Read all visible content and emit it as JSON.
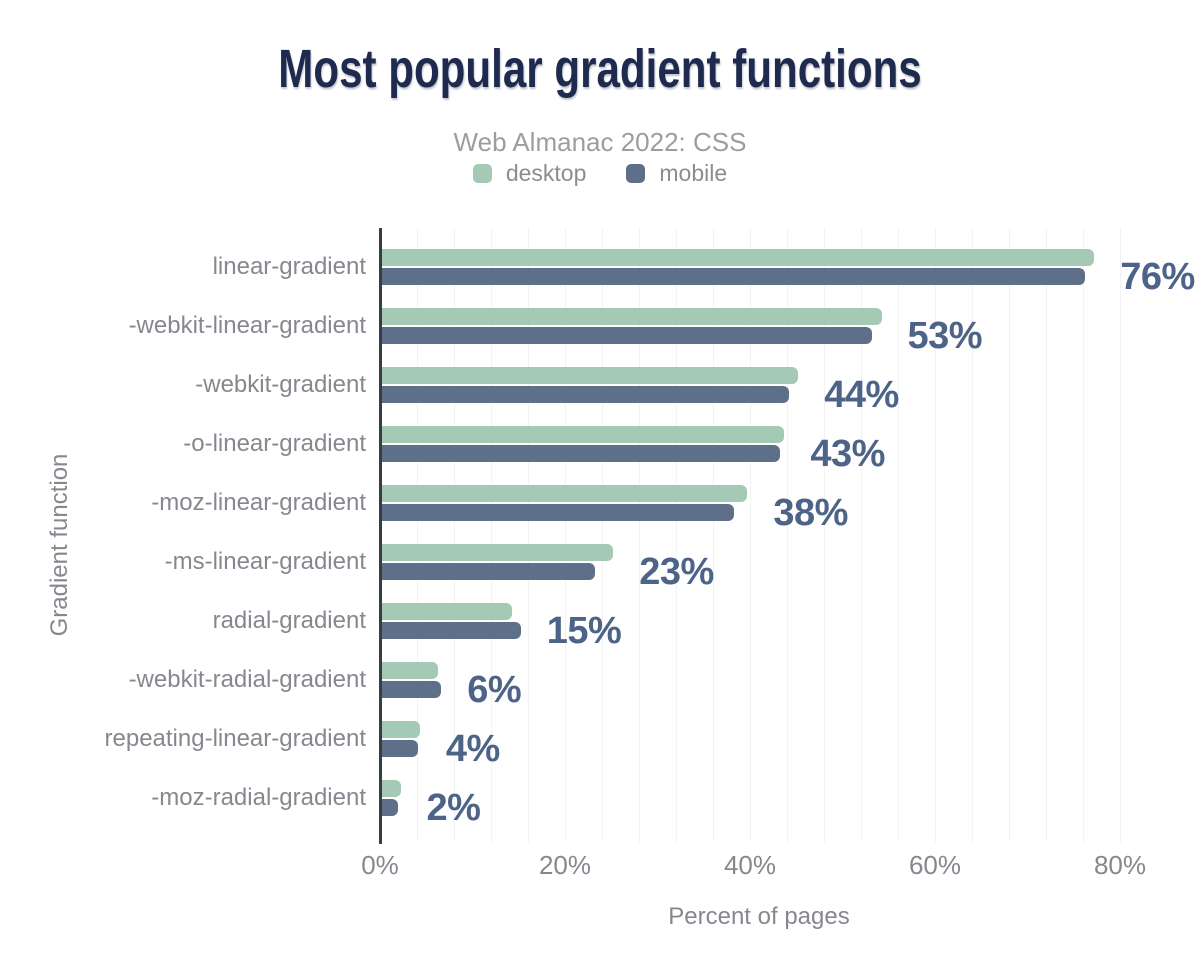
{
  "chart_data": {
    "type": "bar",
    "orientation": "horizontal",
    "title": "Most popular gradient functions",
    "subtitle": "Web Almanac 2022: CSS",
    "xlabel": "Percent of pages",
    "ylabel": "Gradient function",
    "xlim": [
      0,
      80
    ],
    "x_ticks": [
      "0%",
      "20%",
      "40%",
      "60%",
      "80%"
    ],
    "grid_step_pct": 4,
    "grid": "minor-vertical",
    "legend_position": "top-center",
    "categories": [
      "linear-gradient",
      "-webkit-linear-gradient",
      "-webkit-gradient",
      "-o-linear-gradient",
      "-moz-linear-gradient",
      "-ms-linear-gradient",
      "radial-gradient",
      "-webkit-radial-gradient",
      "repeating-linear-gradient",
      "-moz-radial-gradient"
    ],
    "series": [
      {
        "name": "desktop",
        "color": "#a4c9b4",
        "values": [
          77,
          54,
          45,
          43.5,
          39.5,
          25,
          14,
          6,
          4.1,
          2
        ]
      },
      {
        "name": "mobile",
        "color": "#5e7089",
        "values": [
          76,
          53,
          44,
          43,
          38,
          23,
          15,
          6.4,
          3.9,
          1.7
        ]
      }
    ],
    "bar_labels": [
      "76%",
      "53%",
      "44%",
      "43%",
      "38%",
      "23%",
      "15%",
      "6%",
      "4%",
      "2%"
    ]
  },
  "colors": {
    "background": "#ffffff",
    "title": "#1e2a4e",
    "subtitle": "#9b9da1",
    "axis_text": "#85888e",
    "value_label": "#4d6488",
    "axis_line": "#383d44",
    "gridline": "#f1f2f3",
    "desktop_bar": "#a4c9b4",
    "mobile_bar": "#5e7089"
  }
}
